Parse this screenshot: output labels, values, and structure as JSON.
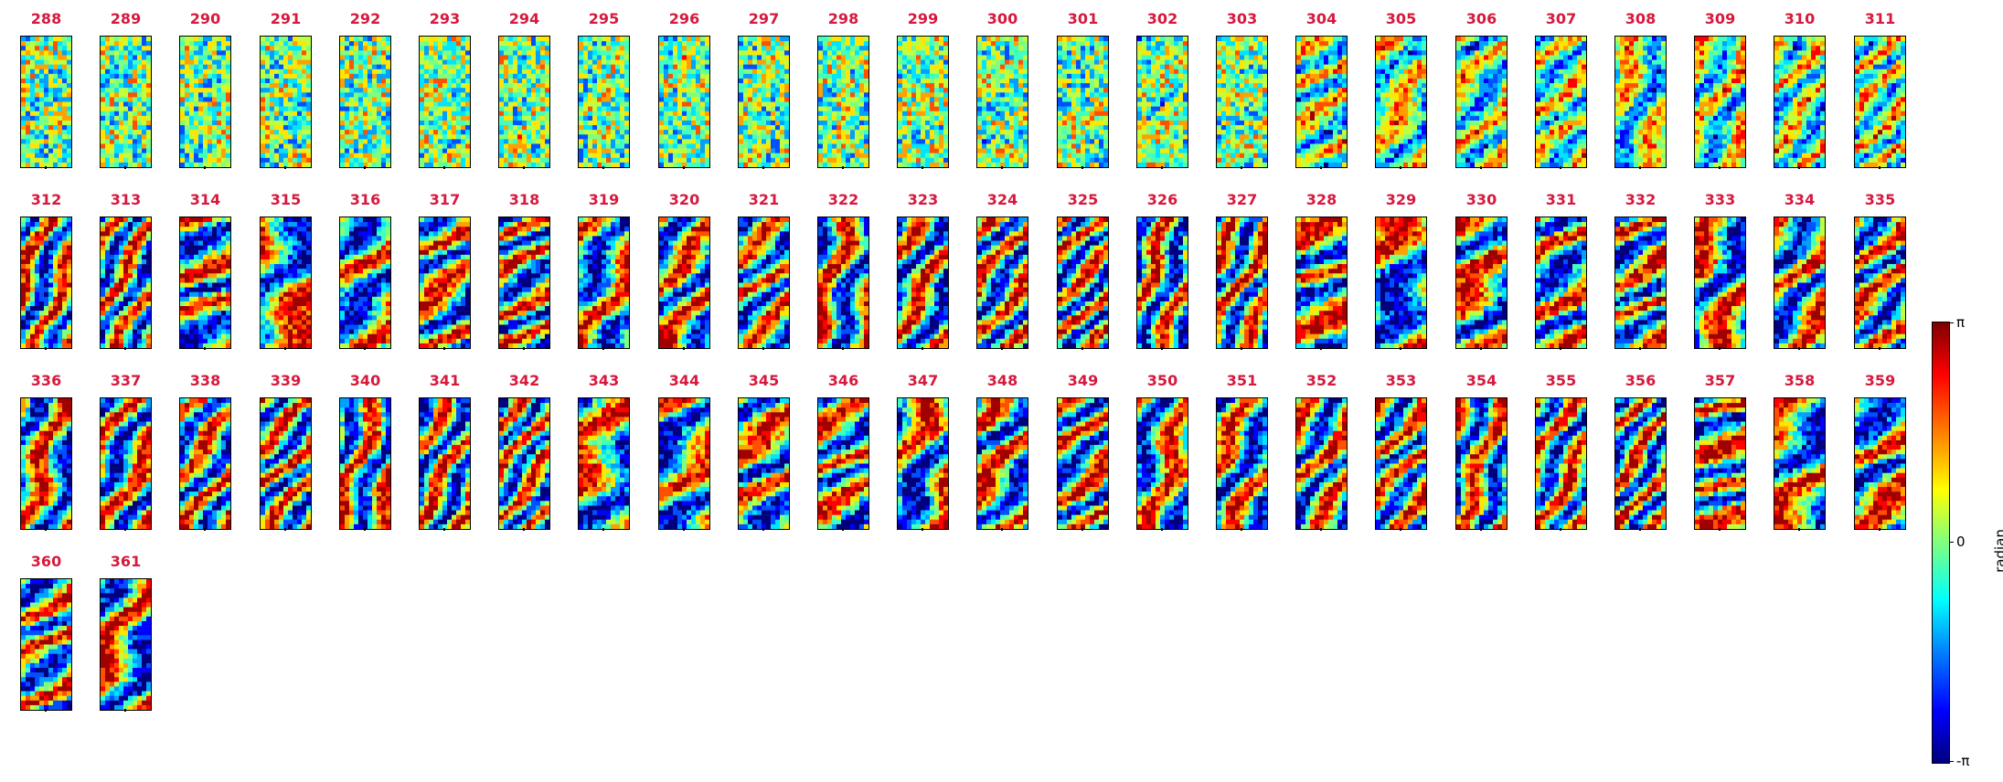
{
  "panels": [
    "288",
    "289",
    "290",
    "291",
    "292",
    "293",
    "294",
    "295",
    "296",
    "297",
    "298",
    "299",
    "300",
    "301",
    "302",
    "303",
    "304",
    "305",
    "306",
    "307",
    "308",
    "309",
    "310",
    "311",
    "312",
    "313",
    "314",
    "315",
    "316",
    "317",
    "318",
    "319",
    "320",
    "321",
    "322",
    "323",
    "324",
    "325",
    "326",
    "327",
    "328",
    "329",
    "330",
    "331",
    "332",
    "333",
    "334",
    "335",
    "336",
    "337",
    "338",
    "339",
    "340",
    "341",
    "342",
    "343",
    "344",
    "345",
    "346",
    "347",
    "348",
    "349",
    "350",
    "351",
    "352",
    "353",
    "354",
    "355",
    "356",
    "357",
    "358",
    "359",
    "360",
    "361"
  ],
  "colorbar": {
    "label": "radian",
    "ticks": [
      "π",
      "0",
      "-π"
    ],
    "colormap": "jet"
  },
  "colors": {
    "title": "#d6193d"
  }
}
